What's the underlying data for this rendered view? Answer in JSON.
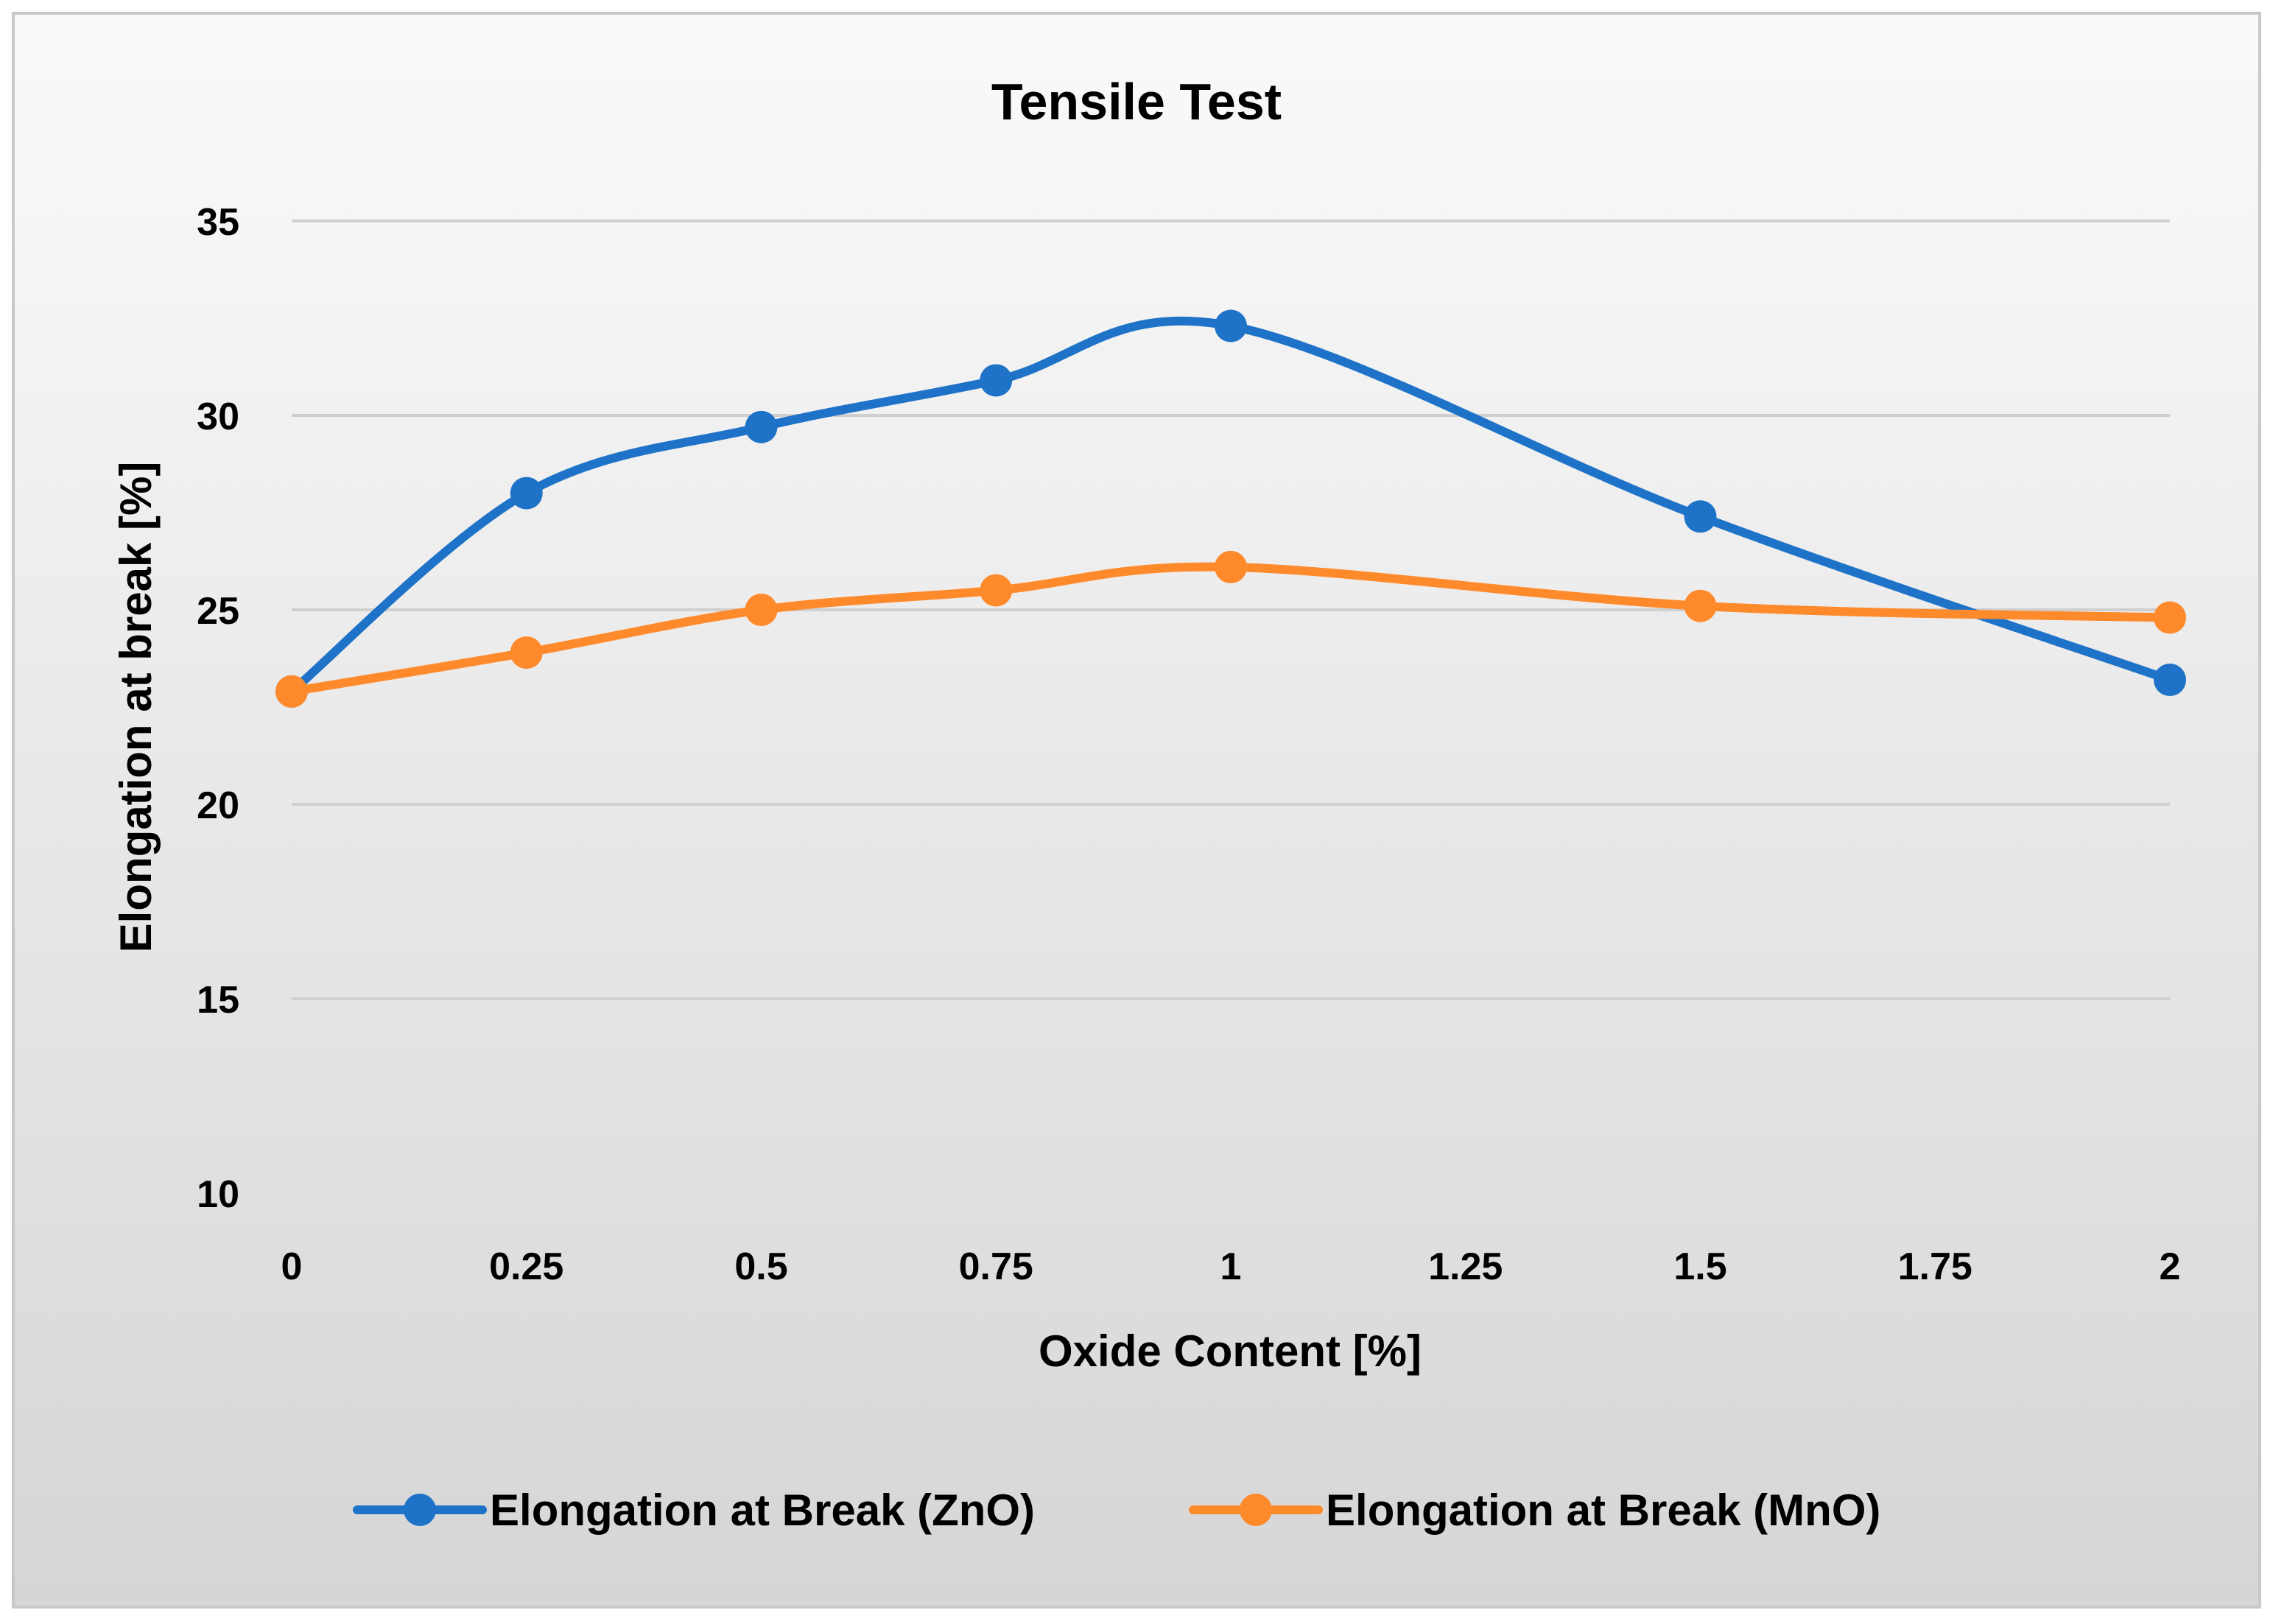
{
  "chart_data": {
    "type": "line",
    "title": "Tensile Test",
    "xlabel": "Oxide Content [%]",
    "ylabel": "Elongation at break [%]",
    "xlim": [
      0,
      2
    ],
    "ylim": [
      10,
      35
    ],
    "x_ticks": [
      "0",
      "0.25",
      "0.5",
      "0.75",
      "1",
      "1.25",
      "1.5",
      "1.75",
      "2"
    ],
    "y_ticks": [
      "10",
      "15",
      "20",
      "25",
      "30",
      "35"
    ],
    "grid": true,
    "smooth": true,
    "legend_position": "bottom",
    "series": [
      {
        "name": "Elongation at Break (ZnO)",
        "color": "#1E73C8",
        "x": [
          0,
          0.25,
          0.5,
          0.75,
          1,
          1.5,
          2
        ],
        "y": [
          22.9,
          28.0,
          29.7,
          30.9,
          32.3,
          27.4,
          23.2
        ]
      },
      {
        "name": "Elongation at Break (MnO)",
        "color": "#FF8A2B",
        "x": [
          0,
          0.25,
          0.5,
          0.75,
          1,
          1.5,
          2
        ],
        "y": [
          22.9,
          23.9,
          25.0,
          25.5,
          26.1,
          25.1,
          24.8
        ]
      }
    ]
  }
}
